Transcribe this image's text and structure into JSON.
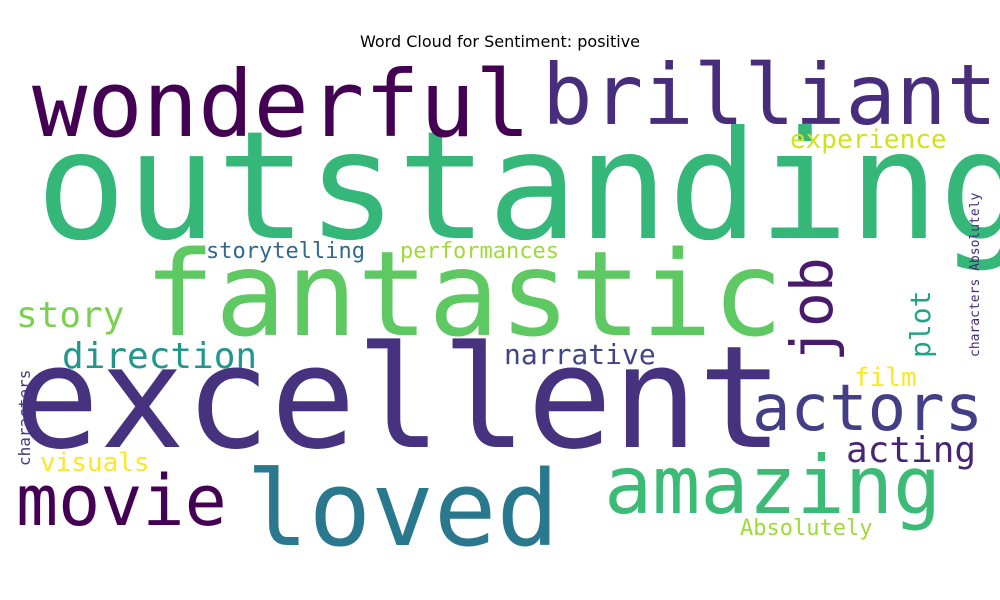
{
  "chart_data": {
    "type": "wordcloud",
    "title": "Word Cloud for Sentiment: positive",
    "colormap": "viridis",
    "background": "#ffffff",
    "words": [
      {
        "text": "outstanding",
        "color": "#35b779"
      },
      {
        "text": "excellent",
        "color": "#46327e"
      },
      {
        "text": "fantastic",
        "color": "#5ec962"
      },
      {
        "text": "wonderful",
        "color": "#440154"
      },
      {
        "text": "brilliant",
        "color": "#472d7b"
      },
      {
        "text": "loved",
        "color": "#2a788e"
      },
      {
        "text": "amazing",
        "color": "#3bbb75"
      },
      {
        "text": "movie",
        "color": "#440154"
      },
      {
        "text": "actors",
        "color": "#433e85"
      },
      {
        "text": "job",
        "color": "#481b6d"
      },
      {
        "text": "direction",
        "color": "#1f988b"
      },
      {
        "text": "acting",
        "color": "#482475"
      },
      {
        "text": "story",
        "color": "#7ad151"
      },
      {
        "text": "narrative",
        "color": "#414487"
      },
      {
        "text": "plot",
        "color": "#20a486"
      },
      {
        "text": "experience",
        "color": "#d2e21b"
      },
      {
        "text": "performances",
        "color": "#a0da39"
      },
      {
        "text": "storytelling",
        "color": "#31688e"
      },
      {
        "text": "film",
        "color": "#fde725"
      },
      {
        "text": "visuals",
        "color": "#fde725"
      },
      {
        "text": "Absolutely",
        "color": "#a0da39"
      },
      {
        "text": "characters",
        "color": "#453781"
      },
      {
        "text": "characters Absolutely",
        "color": "#482878"
      }
    ]
  }
}
